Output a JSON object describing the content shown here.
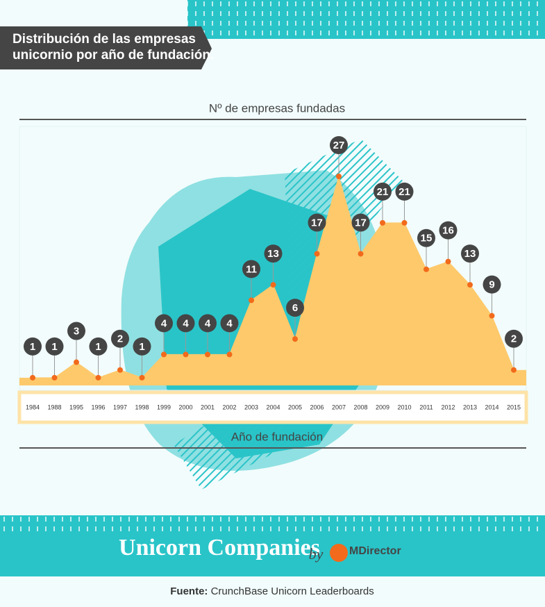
{
  "chart_data": {
    "type": "area",
    "title": [
      "Distribución de las empresas",
      "unicornio por año de fundación."
    ],
    "y_label": "Nº de empresas fundadas",
    "x_label": "Año de fundación",
    "categories": [
      "1984",
      "1988",
      "1995",
      "1996",
      "1997",
      "1998",
      "1999",
      "2000",
      "2001",
      "2002",
      "2003",
      "2004",
      "2005",
      "2006",
      "2007",
      "2008",
      "2009",
      "2010",
      "2011",
      "2012",
      "2013",
      "2014",
      "2015"
    ],
    "values": [
      1,
      1,
      3,
      1,
      2,
      1,
      4,
      4,
      4,
      4,
      11,
      13,
      6,
      17,
      27,
      17,
      21,
      21,
      15,
      16,
      13,
      9,
      2
    ],
    "color": "#fdc96b",
    "point_color": "#f26a1b",
    "label_color": "#454545"
  },
  "footer": {
    "title": "Unicorn Companies",
    "by": "by",
    "brand": "MDirector",
    "source_label": "Fuente:",
    "source": "CrunchBase Unicorn Leaderboards"
  }
}
